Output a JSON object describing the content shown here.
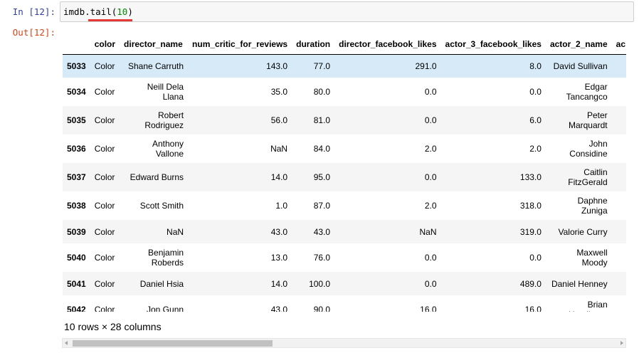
{
  "input_cell": {
    "prompt": "In  [12]:",
    "code_object": "imdb",
    "code_dot": ".",
    "code_method": "tail",
    "code_open": "(",
    "code_arg": "10",
    "code_close": ")"
  },
  "output_cell": {
    "prompt": "Out[12]:",
    "columns": [
      "",
      "color",
      "director_name",
      "num_critic_for_reviews",
      "duration",
      "director_facebook_likes",
      "actor_3_facebook_likes",
      "actor_2_name",
      "ac"
    ],
    "rows": [
      {
        "index": "5033",
        "color": "Color",
        "director_name": "Shane Carruth",
        "critic": "143.0",
        "duration": "77.0",
        "dfb": "291.0",
        "a3": "8.0",
        "a2": "David Sullivan"
      },
      {
        "index": "5034",
        "color": "Color",
        "director_name": "Neill Dela Llana",
        "critic": "35.0",
        "duration": "80.0",
        "dfb": "0.0",
        "a3": "0.0",
        "a2": "Edgar Tancangco"
      },
      {
        "index": "5035",
        "color": "Color",
        "director_name": "Robert Rodriguez",
        "critic": "56.0",
        "duration": "81.0",
        "dfb": "0.0",
        "a3": "6.0",
        "a2": "Peter Marquardt"
      },
      {
        "index": "5036",
        "color": "Color",
        "director_name": "Anthony Vallone",
        "critic": "NaN",
        "duration": "84.0",
        "dfb": "2.0",
        "a3": "2.0",
        "a2": "John Considine"
      },
      {
        "index": "5037",
        "color": "Color",
        "director_name": "Edward Burns",
        "critic": "14.0",
        "duration": "95.0",
        "dfb": "0.0",
        "a3": "133.0",
        "a2": "Caitlin FitzGerald"
      },
      {
        "index": "5038",
        "color": "Color",
        "director_name": "Scott Smith",
        "critic": "1.0",
        "duration": "87.0",
        "dfb": "2.0",
        "a3": "318.0",
        "a2": "Daphne Zuniga"
      },
      {
        "index": "5039",
        "color": "Color",
        "director_name": "NaN",
        "critic": "43.0",
        "duration": "43.0",
        "dfb": "NaN",
        "a3": "319.0",
        "a2": "Valorie Curry"
      },
      {
        "index": "5040",
        "color": "Color",
        "director_name": "Benjamin Roberds",
        "critic": "13.0",
        "duration": "76.0",
        "dfb": "0.0",
        "a3": "0.0",
        "a2": "Maxwell Moody"
      },
      {
        "index": "5041",
        "color": "Color",
        "director_name": "Daniel Hsia",
        "critic": "14.0",
        "duration": "100.0",
        "dfb": "0.0",
        "a3": "489.0",
        "a2": "Daniel Henney"
      },
      {
        "index": "5042",
        "color": "Color",
        "director_name": "Jon Gunn",
        "critic": "43.0",
        "duration": "90.0",
        "dfb": "16.0",
        "a3": "16.0",
        "a2": "Brian Herzlinger"
      }
    ],
    "summary": "10 rows × 28 columns"
  },
  "colors": {
    "in_prompt": "#303f9f",
    "out_prompt": "#d84315",
    "highlight_row": "#d6eaf8",
    "annotation_underline": "#e53935"
  }
}
